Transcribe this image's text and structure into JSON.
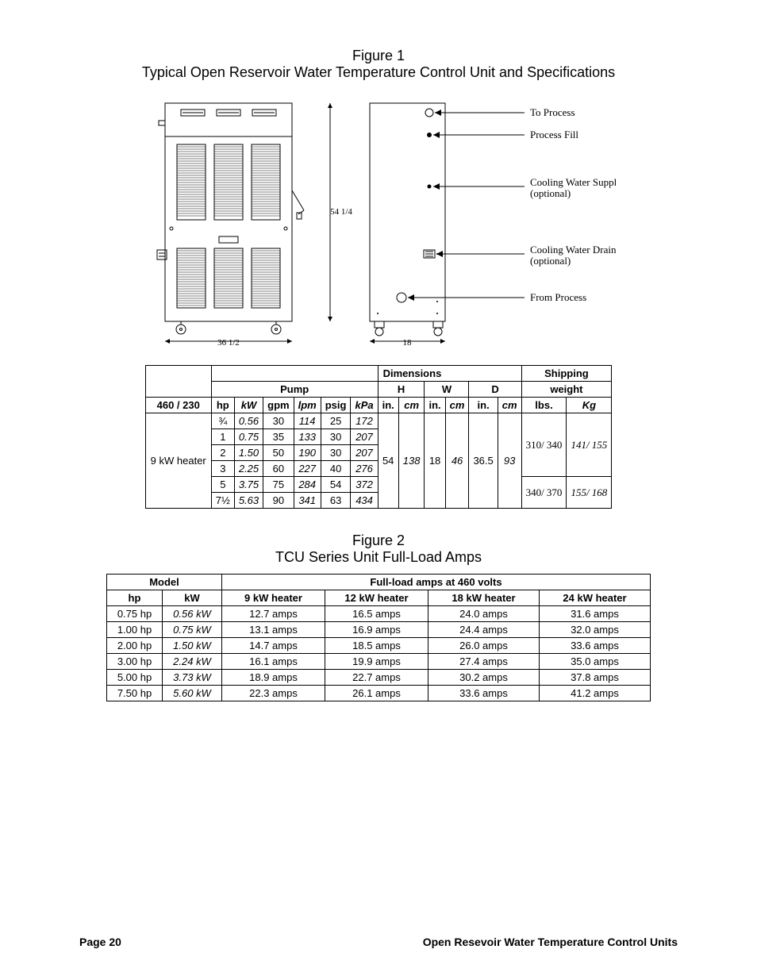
{
  "figure1": {
    "caption_line1": "Figure 1",
    "caption_line2": "Typical Open Reservoir Water Temperature Control Unit and Specifications",
    "front_width_label": "36 1/2",
    "side_height_label": "54 1/4",
    "side_depth_label": "18",
    "ports": {
      "to_process": "To Process",
      "process_fill": "Process Fill",
      "cooling_supply_l1": "Cooling Water Supply",
      "cooling_supply_l2": "(optional)",
      "cooling_drain_l1": "Cooling Water Drain",
      "cooling_drain_l2": "(optional)",
      "from_process": "From Process"
    }
  },
  "table1": {
    "group_pump": "Pump",
    "group_dims": "Dimensions",
    "group_ship": "Shipping",
    "dim_H": "H",
    "dim_W": "W",
    "dim_D": "D",
    "ship_weight": "weight",
    "voltage": "460 / 230",
    "cols": {
      "hp": "hp",
      "kW": "kW",
      "gpm": "gpm",
      "lpm": "lpm",
      "psig": "psig",
      "kPa": "kPa",
      "in": "in.",
      "cm": "cm",
      "lbs": "lbs.",
      "Kg": "Kg"
    },
    "row_label": "9 kW heater",
    "rows": [
      {
        "hp": "¾",
        "kW": "0.56",
        "gpm": "30",
        "lpm": "114",
        "psig": "25",
        "kPa": "172"
      },
      {
        "hp": "1",
        "kW": "0.75",
        "gpm": "35",
        "lpm": "133",
        "psig": "30",
        "kPa": "207"
      },
      {
        "hp": "2",
        "kW": "1.50",
        "gpm": "50",
        "lpm": "190",
        "psig": "30",
        "kPa": "207"
      },
      {
        "hp": "3",
        "kW": "2.25",
        "gpm": "60",
        "lpm": "227",
        "psig": "40",
        "kPa": "276"
      },
      {
        "hp": "5",
        "kW": "3.75",
        "gpm": "75",
        "lpm": "284",
        "psig": "54",
        "kPa": "372"
      },
      {
        "hp": "7½",
        "kW": "5.63",
        "gpm": "90",
        "lpm": "341",
        "psig": "63",
        "kPa": "434"
      }
    ],
    "dims": {
      "H_in": "54",
      "H_cm": "138",
      "W_in": "18",
      "W_cm": "46",
      "D_in": "36.5",
      "D_cm": "93"
    },
    "ship1": {
      "lbs": "310/ 340",
      "kg": "141/ 155"
    },
    "ship2": {
      "lbs": "340/ 370",
      "kg": "155/ 168"
    }
  },
  "figure2": {
    "caption_line1": "Figure 2",
    "caption_line2": "TCU Series Unit Full-Load Amps"
  },
  "table2": {
    "hdr_model": "Model",
    "hdr_fla": "Full-load amps at 460 volts",
    "cols": {
      "hp": "hp",
      "kW": "kW",
      "h9": "9 kW heater",
      "h12": "12 kW heater",
      "h18": "18 kW heater",
      "h24": "24 kW heater"
    },
    "rows": [
      {
        "hp": "0.75 hp",
        "kW": "0.56 kW",
        "h9": "12.7 amps",
        "h12": "16.5 amps",
        "h18": "24.0 amps",
        "h24": "31.6 amps"
      },
      {
        "hp": "1.00 hp",
        "kW": "0.75 kW",
        "h9": "13.1 amps",
        "h12": "16.9 amps",
        "h18": "24.4 amps",
        "h24": "32.0 amps"
      },
      {
        "hp": "2.00 hp",
        "kW": "1.50 kW",
        "h9": "14.7 amps",
        "h12": "18.5 amps",
        "h18": "26.0 amps",
        "h24": "33.6 amps"
      },
      {
        "hp": "3.00 hp",
        "kW": "2.24 kW",
        "h9": "16.1 amps",
        "h12": "19.9 amps",
        "h18": "27.4 amps",
        "h24": "35.0 amps"
      },
      {
        "hp": "5.00 hp",
        "kW": "3.73 kW",
        "h9": "18.9 amps",
        "h12": "22.7 amps",
        "h18": "30.2 amps",
        "h24": "37.8 amps"
      },
      {
        "hp": "7.50 hp",
        "kW": "5.60 kW",
        "h9": "22.3 amps",
        "h12": "26.1 amps",
        "h18": "33.6 amps",
        "h24": "41.2 amps"
      }
    ]
  },
  "footer": {
    "page": "Page 20",
    "title": "Open Resevoir  Water Temperature Control Units"
  }
}
